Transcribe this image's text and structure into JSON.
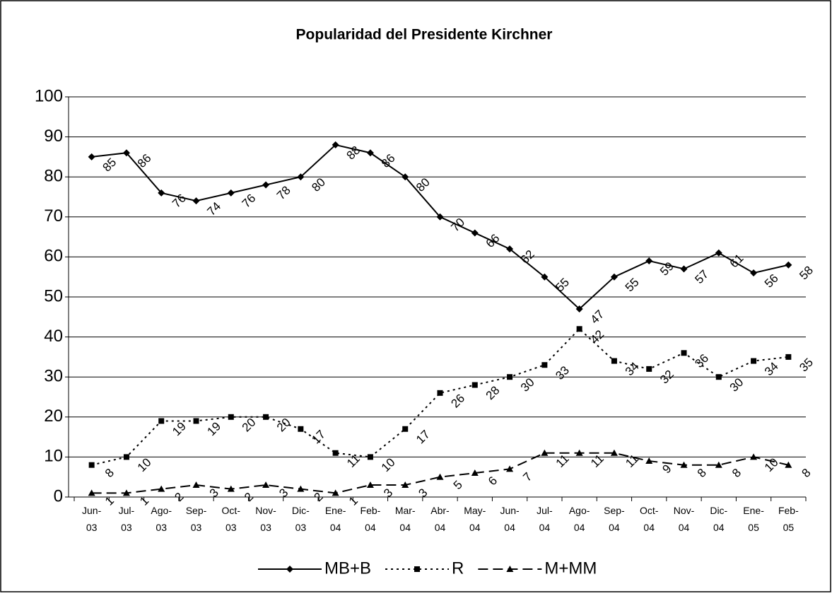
{
  "chart_data": {
    "type": "line",
    "title": "Popularidad del Presidente Kirchner",
    "categories": [
      "Jun-03",
      "Jul-03",
      "Ago-03",
      "Sep-03",
      "Oct-03",
      "Nov-03",
      "Dic-03",
      "Ene-04",
      "Feb-04",
      "Mar-04",
      "Abr-04",
      "May-04",
      "Jun-04",
      "Jul-04",
      "Ago-04",
      "Sep-04",
      "Oct-04",
      "Nov-04",
      "Dic-04",
      "Ene-05",
      "Feb-05"
    ],
    "series": [
      {
        "name": "MB+B",
        "color": "#000000",
        "marker": "diamond",
        "line": "solid",
        "values": [
          85,
          86,
          76,
          74,
          76,
          78,
          80,
          88,
          86,
          80,
          70,
          66,
          62,
          55,
          47,
          55,
          59,
          57,
          61,
          56,
          58
        ]
      },
      {
        "name": "R",
        "color": "#000000",
        "marker": "square",
        "line": "dotted",
        "values": [
          8,
          10,
          19,
          19,
          20,
          20,
          17,
          11,
          10,
          17,
          26,
          28,
          30,
          33,
          42,
          34,
          32,
          36,
          30,
          34,
          35
        ]
      },
      {
        "name": "M+MM",
        "color": "#000000",
        "marker": "triangle",
        "line": "dashed",
        "values": [
          1,
          1,
          2,
          3,
          2,
          3,
          2,
          1,
          3,
          3,
          5,
          6,
          7,
          11,
          11,
          11,
          9,
          8,
          8,
          10,
          8
        ]
      }
    ],
    "ylim": [
      0,
      100
    ],
    "yticks": [
      0,
      10,
      20,
      30,
      40,
      50,
      60,
      70,
      80,
      90,
      100
    ],
    "grid": true,
    "legend": "bottom"
  }
}
